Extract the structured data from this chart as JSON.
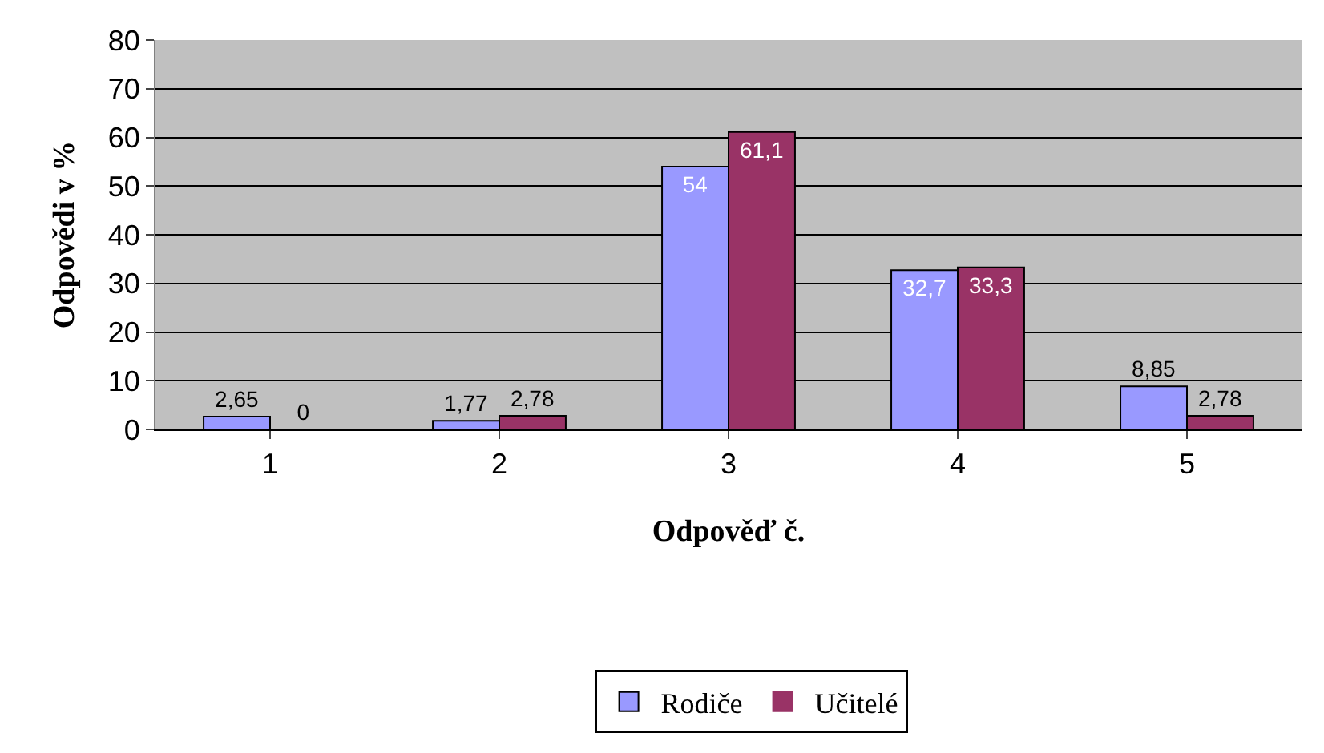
{
  "chart_data": {
    "type": "bar",
    "xlabel": "Odpověď č.",
    "ylabel": "Odpovědi v %",
    "categories": [
      "1",
      "2",
      "3",
      "4",
      "5"
    ],
    "series": [
      {
        "name": "Rodiče",
        "color": "#9999ff",
        "values": [
          2.65,
          1.77,
          54,
          32.7,
          8.85
        ],
        "value_labels": [
          "2,65",
          "1,77",
          "54",
          "32,7",
          "8,85"
        ]
      },
      {
        "name": "Učitelé",
        "color": "#993366",
        "values": [
          0,
          2.78,
          61.1,
          33.3,
          2.78
        ],
        "value_labels": [
          "0",
          "2,78",
          "61,1",
          "33,3",
          "2,78"
        ]
      }
    ],
    "ylim": [
      0,
      80
    ],
    "yticks": [
      0,
      10,
      20,
      30,
      40,
      50,
      60,
      70,
      80
    ],
    "grid": "y",
    "legend": "bottom"
  }
}
